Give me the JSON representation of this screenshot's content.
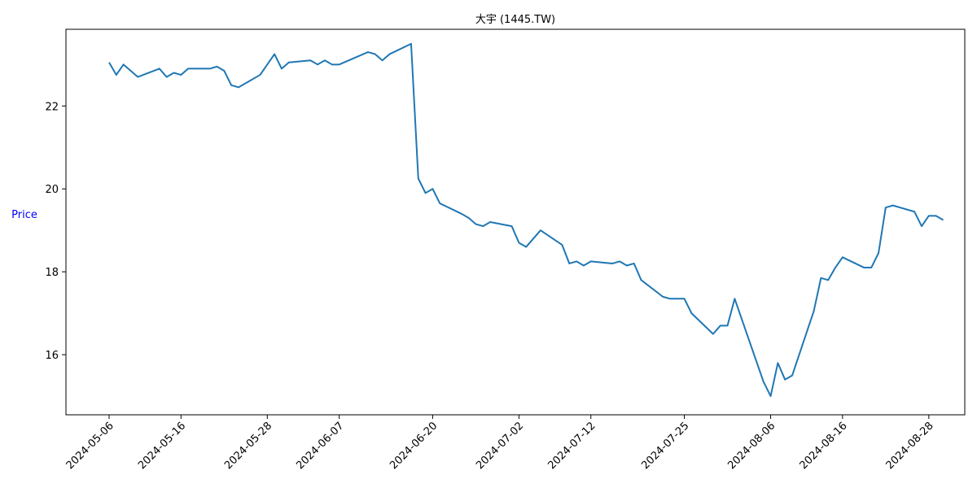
{
  "chart_data": {
    "type": "line",
    "title": "大宇 (1445.TW)",
    "xlabel": "",
    "ylabel": "Price",
    "ylabel_color": "#0000ff",
    "line_color": "#1f77b4",
    "grid": false,
    "legend": "none",
    "ylim": [
      14.55,
      23.85
    ],
    "xlim": [
      "2024-04-30",
      "2024-09-02"
    ],
    "y_ticks": [
      16,
      18,
      20,
      22
    ],
    "x_ticks": [
      "2024-05-06",
      "2024-05-16",
      "2024-05-28",
      "2024-06-07",
      "2024-06-20",
      "2024-07-02",
      "2024-07-12",
      "2024-07-25",
      "2024-08-06",
      "2024-08-16",
      "2024-08-28"
    ],
    "series": [
      {
        "x": [
          "2024-05-06",
          "2024-05-07",
          "2024-05-08",
          "2024-05-10",
          "2024-05-13",
          "2024-05-14",
          "2024-05-15",
          "2024-05-16",
          "2024-05-17",
          "2024-05-20",
          "2024-05-21",
          "2024-05-22",
          "2024-05-23",
          "2024-05-24",
          "2024-05-27",
          "2024-05-29",
          "2024-05-30",
          "2024-05-31",
          "2024-06-03",
          "2024-06-04",
          "2024-06-05",
          "2024-06-06",
          "2024-06-07",
          "2024-06-11",
          "2024-06-12",
          "2024-06-13",
          "2024-06-14",
          "2024-06-17",
          "2024-06-18",
          "2024-06-19",
          "2024-06-20",
          "2024-06-21",
          "2024-06-24",
          "2024-06-25",
          "2024-06-26",
          "2024-06-27",
          "2024-06-28",
          "2024-07-01",
          "2024-07-02",
          "2024-07-03",
          "2024-07-05",
          "2024-07-08",
          "2024-07-09",
          "2024-07-10",
          "2024-07-11",
          "2024-07-12",
          "2024-07-15",
          "2024-07-16",
          "2024-07-17",
          "2024-07-18",
          "2024-07-19",
          "2024-07-22",
          "2024-07-23",
          "2024-07-24",
          "2024-07-25",
          "2024-07-26",
          "2024-07-29",
          "2024-07-30",
          "2024-07-31",
          "2024-08-01",
          "2024-08-02",
          "2024-08-05",
          "2024-08-06",
          "2024-08-07",
          "2024-08-08",
          "2024-08-09",
          "2024-08-12",
          "2024-08-13",
          "2024-08-14",
          "2024-08-15",
          "2024-08-16",
          "2024-08-19",
          "2024-08-20",
          "2024-08-21",
          "2024-08-22",
          "2024-08-23",
          "2024-08-26",
          "2024-08-27",
          "2024-08-28",
          "2024-08-29",
          "2024-08-30"
        ],
        "y": [
          23.05,
          22.75,
          23.0,
          22.7,
          22.9,
          22.7,
          22.8,
          22.75,
          22.9,
          22.9,
          22.95,
          22.85,
          22.5,
          22.45,
          22.75,
          23.25,
          22.9,
          23.05,
          23.1,
          23.0,
          23.1,
          23.0,
          23.0,
          23.3,
          23.25,
          23.1,
          23.25,
          23.5,
          20.25,
          19.9,
          20.0,
          19.65,
          19.4,
          19.3,
          19.15,
          19.1,
          19.2,
          19.1,
          18.7,
          18.6,
          19.0,
          18.65,
          18.2,
          18.25,
          18.15,
          18.25,
          18.2,
          18.25,
          18.15,
          18.2,
          17.8,
          17.4,
          17.35,
          17.35,
          17.35,
          17.0,
          16.5,
          16.7,
          16.7,
          17.35,
          16.85,
          15.35,
          15.0,
          15.8,
          15.4,
          15.5,
          17.05,
          17.85,
          17.8,
          18.1,
          18.35,
          18.1,
          18.1,
          18.45,
          19.55,
          19.6,
          19.45,
          19.1,
          19.35,
          19.35,
          19.25
        ]
      }
    ]
  }
}
